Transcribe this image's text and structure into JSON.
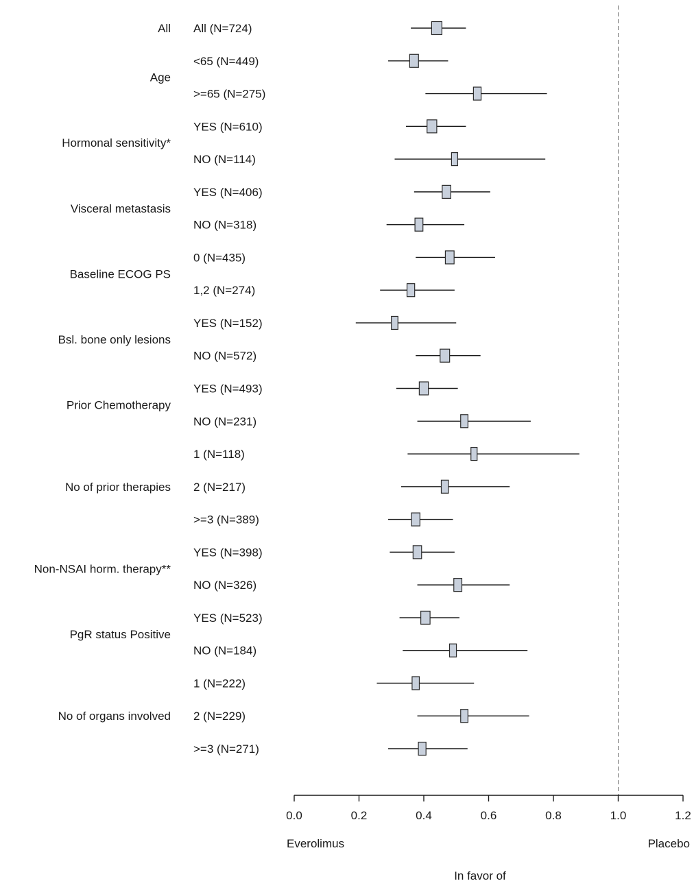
{
  "chart_data": {
    "type": "forest",
    "x_axis": {
      "range": [
        0.0,
        1.2
      ],
      "ticks": [
        0.0,
        0.2,
        0.4,
        0.6,
        0.8,
        1.0,
        1.2
      ],
      "tick_labels": [
        "0.0",
        "0.2",
        "0.4",
        "0.6",
        "0.8",
        "1.0",
        "1.2"
      ],
      "reference_line": 1.0,
      "reference_style": "dashed",
      "left_label": "Everolimus",
      "right_label": "Placebo",
      "bottom_label": "In favor of"
    },
    "grid": false,
    "box_color": "#c8d0dc",
    "line_color": "#1a1a1a",
    "groups": [
      {
        "name": "All",
        "rows": [
          1
        ]
      },
      {
        "name": "Age",
        "rows": [
          2,
          3
        ]
      },
      {
        "name": "Hormonal sensitivity*",
        "rows": [
          4,
          5
        ]
      },
      {
        "name": "Visceral metastasis",
        "rows": [
          6,
          7
        ]
      },
      {
        "name": "Baseline ECOG PS",
        "rows": [
          8,
          9
        ]
      },
      {
        "name": "Bsl. bone only lesions",
        "rows": [
          10,
          11
        ]
      },
      {
        "name": "Prior Chemotherapy",
        "rows": [
          12,
          13
        ]
      },
      {
        "name": "No of prior therapies",
        "rows": [
          14,
          15,
          16
        ]
      },
      {
        "name": "Non-NSAI horm. therapy**",
        "rows": [
          17,
          18
        ]
      },
      {
        "name": "PgR status Positive",
        "rows": [
          19,
          20
        ]
      },
      {
        "name": "No of organs involved",
        "rows": [
          21,
          22,
          23
        ]
      }
    ],
    "rows": [
      {
        "label": "All (N=724)",
        "n": 724,
        "est": 0.44,
        "lo": 0.36,
        "hi": 0.53
      },
      {
        "label": "<65 (N=449)",
        "n": 449,
        "est": 0.37,
        "lo": 0.29,
        "hi": 0.475
      },
      {
        "label": ">=65 (N=275)",
        "n": 275,
        "est": 0.565,
        "lo": 0.405,
        "hi": 0.78
      },
      {
        "label": "YES (N=610)",
        "n": 610,
        "est": 0.425,
        "lo": 0.345,
        "hi": 0.53
      },
      {
        "label": "NO (N=114)",
        "n": 114,
        "est": 0.495,
        "lo": 0.31,
        "hi": 0.775
      },
      {
        "label": "YES (N=406)",
        "n": 406,
        "est": 0.47,
        "lo": 0.37,
        "hi": 0.605
      },
      {
        "label": "NO (N=318)",
        "n": 318,
        "est": 0.385,
        "lo": 0.285,
        "hi": 0.525
      },
      {
        "label": "0 (N=435)",
        "n": 435,
        "est": 0.48,
        "lo": 0.375,
        "hi": 0.62
      },
      {
        "label": "1,2 (N=274)",
        "n": 274,
        "est": 0.36,
        "lo": 0.265,
        "hi": 0.495
      },
      {
        "label": "YES (N=152)",
        "n": 152,
        "est": 0.31,
        "lo": 0.19,
        "hi": 0.5
      },
      {
        "label": "NO (N=572)",
        "n": 572,
        "est": 0.465,
        "lo": 0.375,
        "hi": 0.575
      },
      {
        "label": "YES (N=493)",
        "n": 493,
        "est": 0.4,
        "lo": 0.315,
        "hi": 0.505
      },
      {
        "label": "NO (N=231)",
        "n": 231,
        "est": 0.525,
        "lo": 0.38,
        "hi": 0.73
      },
      {
        "label": "1 (N=118)",
        "n": 118,
        "est": 0.555,
        "lo": 0.35,
        "hi": 0.88
      },
      {
        "label": "2 (N=217)",
        "n": 217,
        "est": 0.465,
        "lo": 0.33,
        "hi": 0.665
      },
      {
        "label": ">=3 (N=389)",
        "n": 389,
        "est": 0.375,
        "lo": 0.29,
        "hi": 0.49
      },
      {
        "label": "YES (N=398)",
        "n": 398,
        "est": 0.38,
        "lo": 0.295,
        "hi": 0.495
      },
      {
        "label": "NO (N=326)",
        "n": 326,
        "est": 0.505,
        "lo": 0.38,
        "hi": 0.665
      },
      {
        "label": "YES (N=523)",
        "n": 523,
        "est": 0.405,
        "lo": 0.325,
        "hi": 0.51
      },
      {
        "label": "NO (N=184)",
        "n": 184,
        "est": 0.49,
        "lo": 0.335,
        "hi": 0.72
      },
      {
        "label": "1 (N=222)",
        "n": 222,
        "est": 0.375,
        "lo": 0.255,
        "hi": 0.555
      },
      {
        "label": "2 (N=229)",
        "n": 229,
        "est": 0.525,
        "lo": 0.38,
        "hi": 0.725
      },
      {
        "label": ">=3 (N=271)",
        "n": 271,
        "est": 0.395,
        "lo": 0.29,
        "hi": 0.535
      }
    ]
  }
}
